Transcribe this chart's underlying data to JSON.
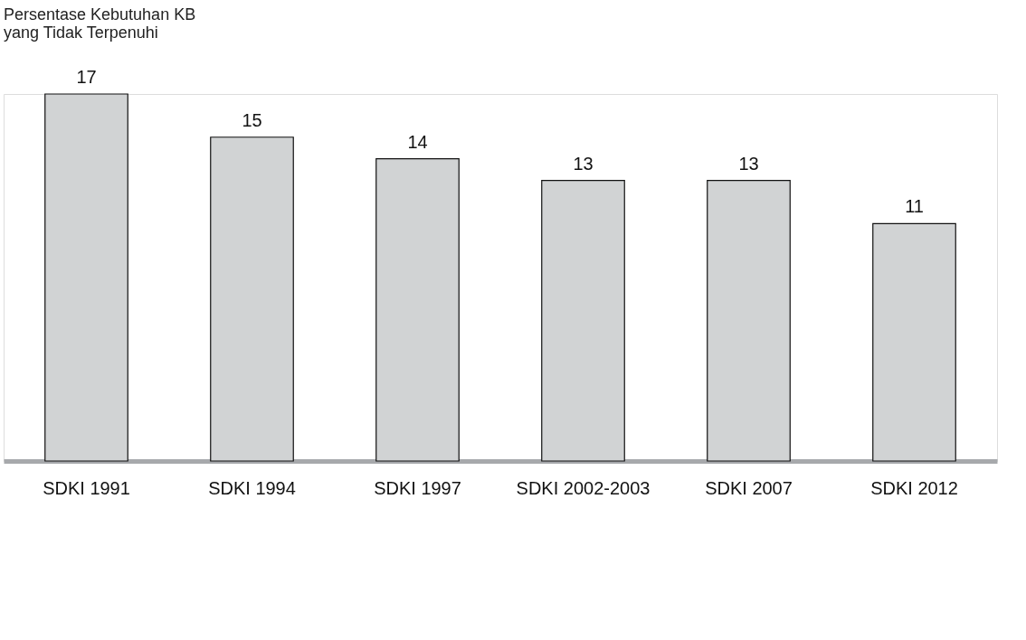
{
  "chart_data": {
    "type": "bar",
    "title": "Persentase Kebutuhan KB\nyang Tidak Terpenuhi",
    "categories": [
      "SDKI 1991",
      "SDKI 1994",
      "SDKI 1997",
      "SDKI 2002-2003",
      "SDKI 2007",
      "SDKI 2012"
    ],
    "values": [
      17,
      15,
      14,
      13,
      13,
      11
    ],
    "color": "#d1d3d4",
    "data_labels": true
  }
}
